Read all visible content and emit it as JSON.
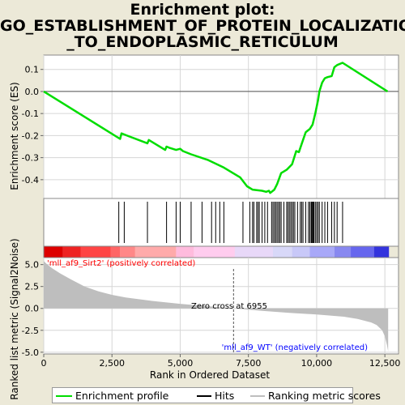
{
  "title_lines": [
    "Enrichment plot:",
    "GO_ESTABLISHMENT_OF_PROTEIN_LOCALIZATION",
    "_TO_ENDOPLASMIC_RETICULUM"
  ],
  "chart_data": [
    {
      "type": "line",
      "name": "enrichment-profile",
      "ylabel": "Enrichment score (ES)",
      "ylim": [
        -0.485,
        0.165
      ],
      "yticks": [
        0.1,
        0.0,
        -0.1,
        -0.2,
        -0.3,
        -0.4
      ],
      "ytick_labels": [
        "0.1",
        "0.0",
        "-0.1",
        "-0.2",
        "-0.3",
        "-0.4"
      ],
      "xlim": [
        0,
        13000
      ],
      "color": "#00dd00",
      "x": [
        0,
        2800,
        2850,
        3050,
        3800,
        3850,
        4450,
        4500,
        4600,
        4850,
        5000,
        5100,
        5400,
        6000,
        6600,
        7200,
        7450,
        7650,
        8000,
        8150,
        8250,
        8300,
        8450,
        8550,
        8700,
        8900,
        9100,
        9250,
        9350,
        9500,
        9600,
        9650,
        9750,
        9850,
        9950,
        10050,
        10100,
        10200,
        10300,
        10400,
        10550,
        10650,
        10750,
        10950,
        12600
      ],
      "y": [
        0.0,
        -0.215,
        -0.19,
        -0.2,
        -0.235,
        -0.22,
        -0.265,
        -0.25,
        -0.255,
        -0.265,
        -0.26,
        -0.27,
        -0.285,
        -0.31,
        -0.345,
        -0.39,
        -0.43,
        -0.445,
        -0.45,
        -0.455,
        -0.45,
        -0.46,
        -0.445,
        -0.42,
        -0.37,
        -0.355,
        -0.33,
        -0.27,
        -0.275,
        -0.22,
        -0.185,
        -0.18,
        -0.17,
        -0.15,
        -0.1,
        -0.04,
        0.0,
        0.04,
        0.06,
        0.065,
        0.07,
        0.11,
        0.12,
        0.13,
        0.0
      ]
    },
    {
      "type": "bar",
      "name": "hits",
      "x": [
        2750,
        2950,
        3800,
        4500,
        4850,
        5000,
        5400,
        5800,
        6150,
        6300,
        6450,
        6600,
        7300,
        7550,
        7650,
        7700,
        7800,
        7850,
        7900,
        8000,
        8100,
        8200,
        8350,
        8400,
        8450,
        8500,
        8550,
        8600,
        8650,
        8700,
        8800,
        8900,
        8950,
        9000,
        9050,
        9100,
        9150,
        9200,
        9300,
        9400,
        9450,
        9500,
        9600,
        9700,
        9750,
        9800,
        9820,
        9850,
        9880,
        9900,
        9950,
        10000,
        10050,
        10100,
        10200,
        10300,
        10400,
        10550,
        10650,
        10750,
        10950
      ]
    },
    {
      "type": "area",
      "name": "ranking-metric",
      "ylabel": "Ranked list metric (Signal2Noise)",
      "xlabel": "Rank in Ordered Dataset",
      "ylim": [
        -5.2,
        5.8
      ],
      "yticks": [
        5.0,
        2.5,
        0.0,
        -2.5,
        -5.0
      ],
      "ytick_labels": [
        "5.0",
        "2.5",
        "0.0",
        "-2.5",
        "-5.0"
      ],
      "xticks": [
        0,
        2500,
        5000,
        7500,
        10000,
        12500
      ],
      "xtick_labels": [
        "0",
        "2,500",
        "5,000",
        "7,500",
        "10,000",
        "12,500"
      ],
      "xlim": [
        0,
        13000
      ],
      "color": "#bebebe",
      "x": [
        0,
        100,
        300,
        600,
        1000,
        1500,
        2000,
        2500,
        3000,
        4000,
        5000,
        6000,
        6955,
        8000,
        9000,
        10000,
        11000,
        11500,
        12000,
        12200,
        12400,
        12500,
        12580,
        12620
      ],
      "y": [
        5.4,
        5.1,
        4.6,
        4.0,
        3.3,
        2.5,
        1.95,
        1.55,
        1.25,
        0.85,
        0.52,
        0.25,
        0.0,
        -0.28,
        -0.5,
        -0.7,
        -0.95,
        -1.2,
        -1.6,
        -1.9,
        -2.5,
        -3.2,
        -4.2,
        -4.9
      ],
      "annotations": {
        "positive": "'mll_af9_Sirt2' (positively correlated)",
        "negative": "'mll_af9_WT' (negatively correlated)",
        "zero_cross": "Zero cross at 6955",
        "zero_cross_x": 6955,
        "positive_color": "#ff0000",
        "negative_color": "#0000ff"
      }
    }
  ],
  "color_bar": {
    "colors": [
      "#dd0000",
      "#ee2222",
      "#ff4444",
      "#ff6666",
      "#ff8888",
      "#ffaaaa",
      "#ffbbdd",
      "#ffccee",
      "#e8d8f8",
      "#d8d8f8",
      "#c8c8f8",
      "#a8a8f8",
      "#8888f0",
      "#6666ee",
      "#3333dd",
      "#0000cc"
    ],
    "bounds": [
      0,
      700,
      1350,
      2450,
      2800,
      3350,
      4850,
      5500,
      7000,
      8400,
      9100,
      9750,
      10650,
      11250,
      12100,
      12650
    ]
  },
  "legend": {
    "items": [
      "Enrichment profile",
      "Hits",
      "Ranking metric scores"
    ],
    "colors": [
      "#00dd00",
      "#000000",
      "#bebebe"
    ]
  }
}
